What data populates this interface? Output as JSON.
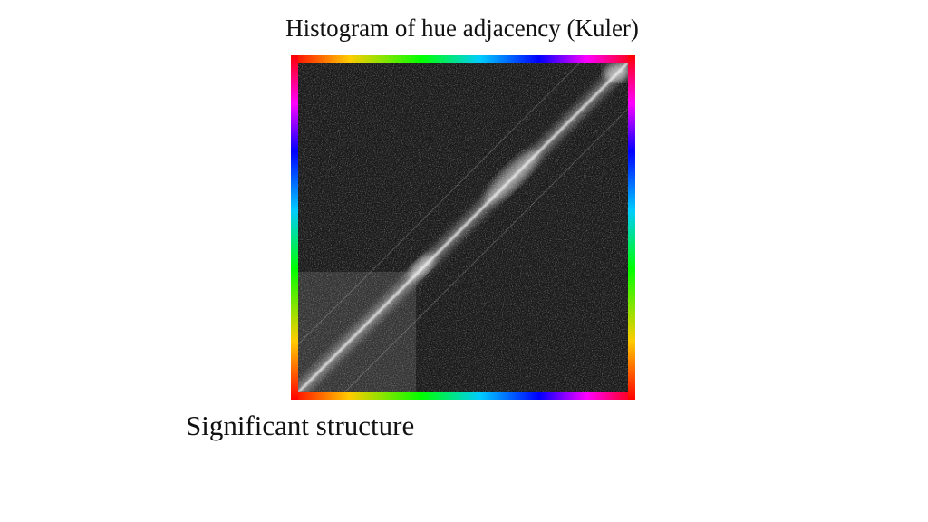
{
  "slide": {
    "title": "Histogram of hue adjacency (Kuler)",
    "caption": "Significant structure"
  }
}
